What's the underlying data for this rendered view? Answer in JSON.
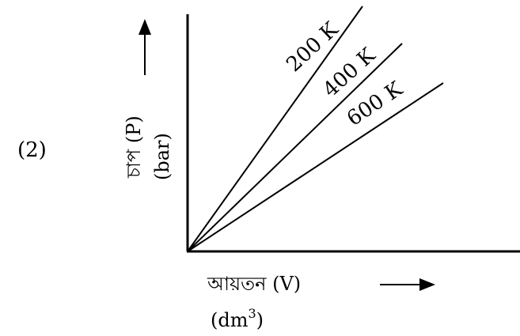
{
  "option_label": "(2)",
  "y_axis": {
    "label": "চাপ (P)",
    "unit": "(bar)"
  },
  "x_axis": {
    "label": "আয়তন (V)",
    "unit_prefix": "(dm",
    "unit_exponent": "3",
    "unit_suffix": ")"
  },
  "isotherms": [
    {
      "label": "200 K"
    },
    {
      "label": "400 K"
    },
    {
      "label": "600 K"
    }
  ],
  "colors": {
    "ink": "#000000",
    "background": "#ffffff"
  }
}
